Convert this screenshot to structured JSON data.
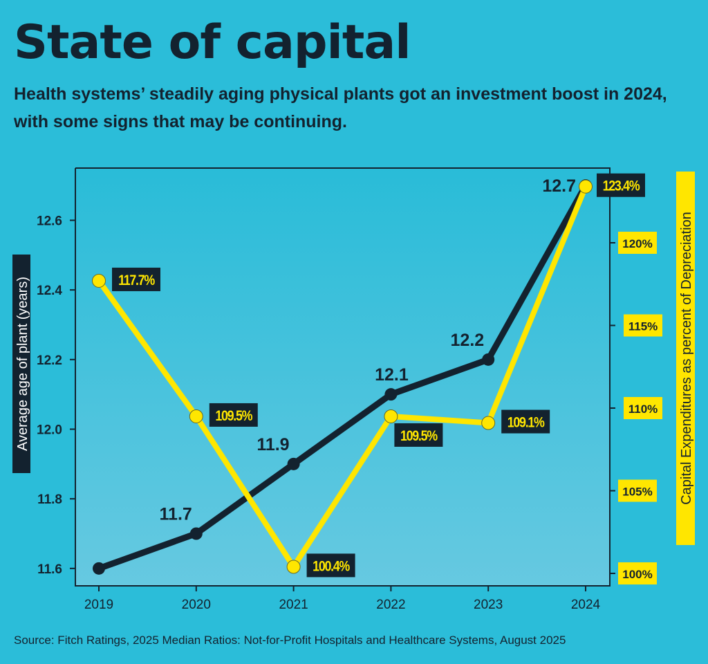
{
  "title": "State of capital",
  "subtitle": "Health systems’ steadily aging physical plants got an investment boost in 2024, with some signs that may be continuing.",
  "source": "Source: Fitch Ratings, 2025 Median Ratios: Not-for-Profit Hospitals and Healthcare Systems, August 2025",
  "colors": {
    "background": "#2bbdd9",
    "dark": "#13222f",
    "yellow": "#ffe600"
  },
  "chart_data": {
    "type": "line",
    "categories": [
      "2019",
      "2020",
      "2021",
      "2022",
      "2023",
      "2024"
    ],
    "ylabel": "Average age of plant (years)",
    "y2label": "Capital Expenditures as percent of Depreciation",
    "ylim": [
      11.55,
      12.75
    ],
    "yticks": [
      "11.6",
      "11.8",
      "12.0",
      "12.2",
      "12.4",
      "12.6"
    ],
    "y2lim": [
      98.4,
      123.8
    ],
    "y2ticks": [
      "100%",
      "105%",
      "110%",
      "115%",
      "120%"
    ],
    "grid": false,
    "series": [
      {
        "axis": "left",
        "color": "#13222f",
        "values": [
          11.6,
          11.7,
          11.9,
          12.1,
          12.2,
          12.7
        ],
        "labels": [
          "",
          "11.7",
          "11.9",
          "12.1",
          "12.2",
          "12.7"
        ]
      },
      {
        "axis": "right",
        "color": "#ffe600",
        "values": [
          117.7,
          109.5,
          100.4,
          109.5,
          109.1,
          123.4
        ],
        "labels": [
          "117.7%",
          "109.5%",
          "100.4%",
          "109.5%",
          "109.1%",
          "123.4%"
        ]
      }
    ]
  }
}
